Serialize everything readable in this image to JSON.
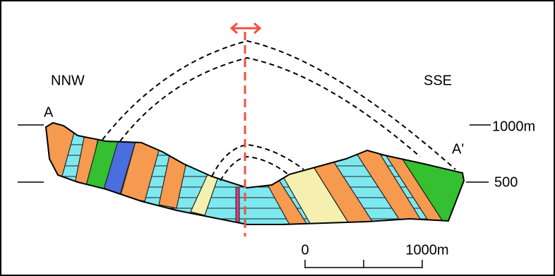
{
  "labels": {
    "left_direction": "NNW",
    "right_direction": "SSE",
    "left_point": "A",
    "right_point": "A'",
    "elevation_high": "1000m",
    "elevation_low": "500",
    "scale_start": "0",
    "scale_end": "1000m"
  }
}
